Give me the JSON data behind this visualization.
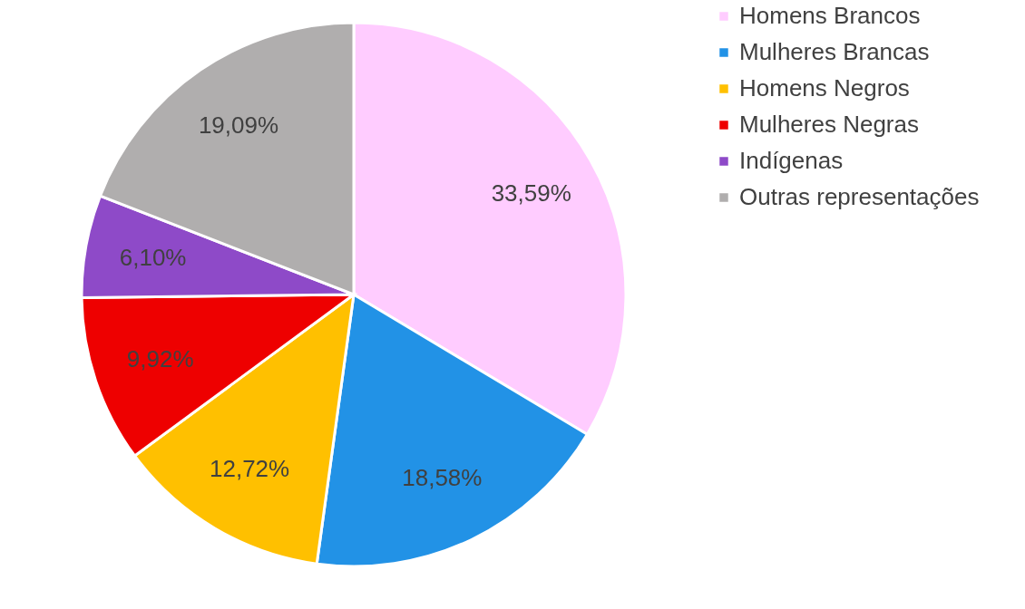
{
  "chart_data": {
    "type": "pie",
    "categories": [
      "Homens Brancos",
      "Mulheres Brancas",
      "Homens Negros",
      "Mulheres Negras",
      "Indígenas",
      "Outras representações"
    ],
    "values": [
      33.59,
      18.58,
      12.72,
      9.92,
      6.1,
      19.09
    ],
    "colors": [
      "#ffccff",
      "#2292e6",
      "#ffc000",
      "#ee0000",
      "#8e4ac8",
      "#b0aeae"
    ],
    "value_labels": [
      "33,59%",
      "18,58%",
      "12,72%",
      "9,92%",
      "6,10%",
      "19,09%"
    ],
    "legend": "right"
  }
}
